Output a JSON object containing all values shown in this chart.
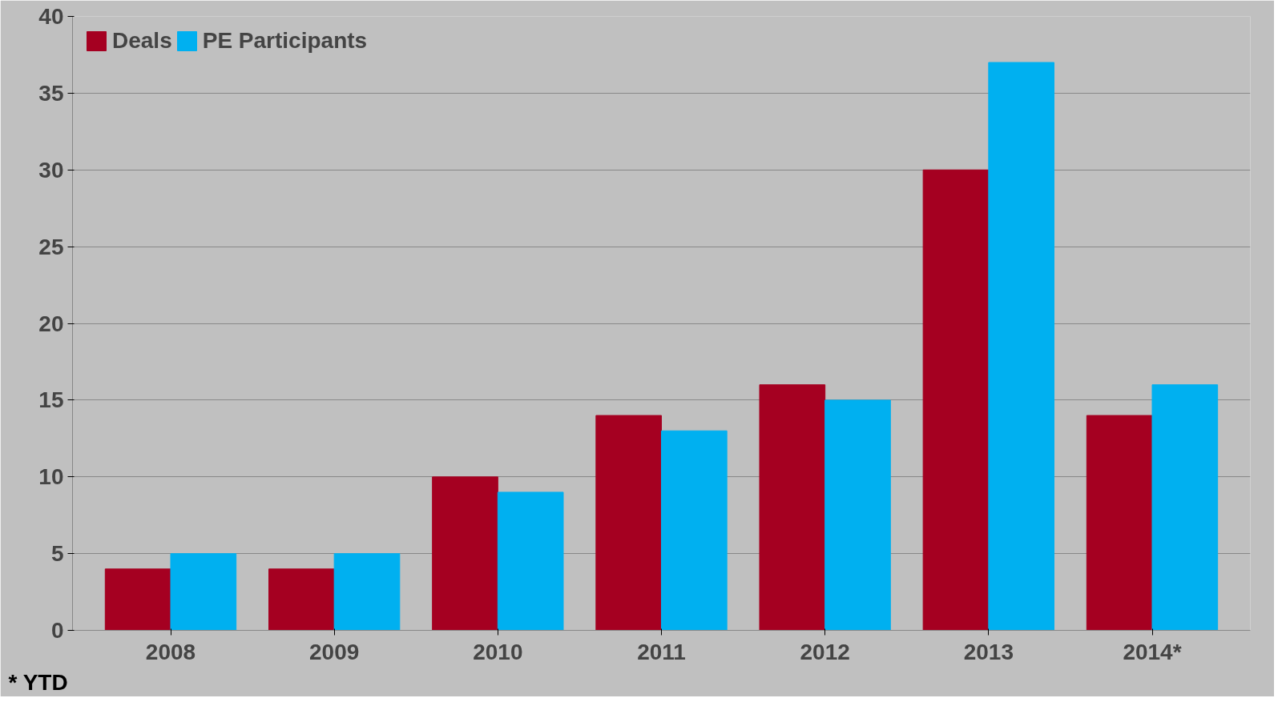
{
  "chart_data": {
    "type": "bar",
    "categories": [
      "2008",
      "2009",
      "2010",
      "2011",
      "2012",
      "2013",
      "2014*"
    ],
    "series": [
      {
        "name": "Deals",
        "color": "#a50021",
        "values": [
          4,
          4,
          10,
          14,
          16,
          30,
          14
        ]
      },
      {
        "name": "PE Participants",
        "color": "#00b0f0",
        "values": [
          5,
          5,
          9,
          13,
          15,
          37,
          16
        ]
      }
    ],
    "ylim": [
      0,
      40
    ],
    "yticks": [
      0,
      5,
      10,
      15,
      20,
      25,
      30,
      35,
      40
    ],
    "grid": "y",
    "legend": "top left",
    "annotations": [
      "*  YTD"
    ]
  }
}
